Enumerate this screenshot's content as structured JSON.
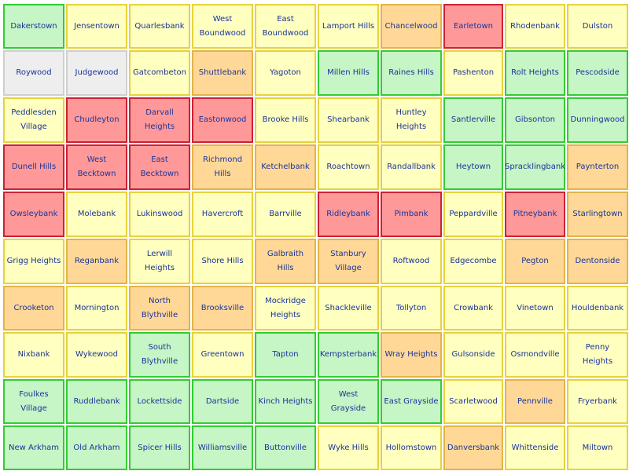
{
  "palette": {
    "green": {
      "bg": "#c6f5c6",
      "border": "#33cc33"
    },
    "yellow": {
      "bg": "#ffffc0",
      "border": "#e6d23c"
    },
    "orange": {
      "bg": "#ffd898",
      "border": "#e2b34a"
    },
    "red": {
      "bg": "#ff9999",
      "border": "#cc2233"
    },
    "gray": {
      "bg": "#eeeeee",
      "border": "#cfcfcf"
    }
  },
  "rows": [
    [
      {
        "name": "Dakerstown",
        "status": "green"
      },
      {
        "name": "Jensentown",
        "status": "yellow"
      },
      {
        "name": "Quarlesbank",
        "status": "yellow"
      },
      {
        "name": "West Boundwood",
        "status": "yellow"
      },
      {
        "name": "East Boundwood",
        "status": "yellow"
      },
      {
        "name": "Lamport Hills",
        "status": "yellow"
      },
      {
        "name": "Chancelwood",
        "status": "orange"
      },
      {
        "name": "Earletown",
        "status": "red"
      },
      {
        "name": "Rhodenbank",
        "status": "yellow"
      },
      {
        "name": "Dulston",
        "status": "yellow"
      }
    ],
    [
      {
        "name": "Roywood",
        "status": "gray"
      },
      {
        "name": "Judgewood",
        "status": "gray"
      },
      {
        "name": "Gatcombeton",
        "status": "yellow"
      },
      {
        "name": "Shuttlebank",
        "status": "orange"
      },
      {
        "name": "Yagoton",
        "status": "yellow"
      },
      {
        "name": "Millen Hills",
        "status": "green"
      },
      {
        "name": "Raines Hills",
        "status": "green"
      },
      {
        "name": "Pashenton",
        "status": "yellow"
      },
      {
        "name": "Rolt Heights",
        "status": "green"
      },
      {
        "name": "Pescodside",
        "status": "green"
      }
    ],
    [
      {
        "name": "Peddlesden Village",
        "status": "yellow"
      },
      {
        "name": "Chudleyton",
        "status": "red"
      },
      {
        "name": "Darvall Heights",
        "status": "red"
      },
      {
        "name": "Eastonwood",
        "status": "red"
      },
      {
        "name": "Brooke Hills",
        "status": "yellow"
      },
      {
        "name": "Shearbank",
        "status": "yellow"
      },
      {
        "name": "Huntley Heights",
        "status": "yellow"
      },
      {
        "name": "Santlerville",
        "status": "green"
      },
      {
        "name": "Gibsonton",
        "status": "green"
      },
      {
        "name": "Dunningwood",
        "status": "green"
      }
    ],
    [
      {
        "name": "Dunell Hills",
        "status": "red"
      },
      {
        "name": "West Becktown",
        "status": "red"
      },
      {
        "name": "East Becktown",
        "status": "red"
      },
      {
        "name": "Richmond Hills",
        "status": "orange"
      },
      {
        "name": "Ketchelbank",
        "status": "orange"
      },
      {
        "name": "Roachtown",
        "status": "yellow"
      },
      {
        "name": "Randallbank",
        "status": "yellow"
      },
      {
        "name": "Heytown",
        "status": "green"
      },
      {
        "name": "Spracklingbank",
        "status": "green"
      },
      {
        "name": "Paynterton",
        "status": "orange"
      }
    ],
    [
      {
        "name": "Owsleybank",
        "status": "red"
      },
      {
        "name": "Molebank",
        "status": "yellow"
      },
      {
        "name": "Lukinswood",
        "status": "yellow"
      },
      {
        "name": "Havercroft",
        "status": "yellow"
      },
      {
        "name": "Barrville",
        "status": "yellow"
      },
      {
        "name": "Ridleybank",
        "status": "red"
      },
      {
        "name": "Pimbank",
        "status": "red"
      },
      {
        "name": "Peppardville",
        "status": "yellow"
      },
      {
        "name": "Pitneybank",
        "status": "red"
      },
      {
        "name": "Starlingtown",
        "status": "orange"
      }
    ],
    [
      {
        "name": "Grigg Heights",
        "status": "yellow"
      },
      {
        "name": "Reganbank",
        "status": "orange"
      },
      {
        "name": "Lerwill Heights",
        "status": "yellow"
      },
      {
        "name": "Shore Hills",
        "status": "yellow"
      },
      {
        "name": "Galbraith Hills",
        "status": "orange"
      },
      {
        "name": "Stanbury Village",
        "status": "orange"
      },
      {
        "name": "Roftwood",
        "status": "yellow"
      },
      {
        "name": "Edgecombe",
        "status": "yellow"
      },
      {
        "name": "Pegton",
        "status": "orange"
      },
      {
        "name": "Dentonside",
        "status": "orange"
      }
    ],
    [
      {
        "name": "Crooketon",
        "status": "orange"
      },
      {
        "name": "Mornington",
        "status": "yellow"
      },
      {
        "name": "North Blythville",
        "status": "orange"
      },
      {
        "name": "Brooksville",
        "status": "orange"
      },
      {
        "name": "Mockridge Heights",
        "status": "yellow"
      },
      {
        "name": "Shackleville",
        "status": "yellow"
      },
      {
        "name": "Tollyton",
        "status": "yellow"
      },
      {
        "name": "Crowbank",
        "status": "yellow"
      },
      {
        "name": "Vinetown",
        "status": "yellow"
      },
      {
        "name": "Houldenbank",
        "status": "yellow"
      }
    ],
    [
      {
        "name": "Nixbank",
        "status": "yellow"
      },
      {
        "name": "Wykewood",
        "status": "yellow"
      },
      {
        "name": "South Blythville",
        "status": "green"
      },
      {
        "name": "Greentown",
        "status": "yellow"
      },
      {
        "name": "Tapton",
        "status": "green"
      },
      {
        "name": "Kempsterbank",
        "status": "green"
      },
      {
        "name": "Wray Heights",
        "status": "orange"
      },
      {
        "name": "Gulsonside",
        "status": "yellow"
      },
      {
        "name": "Osmondville",
        "status": "yellow"
      },
      {
        "name": "Penny Heights",
        "status": "yellow"
      }
    ],
    [
      {
        "name": "Foulkes Village",
        "status": "green"
      },
      {
        "name": "Ruddlebank",
        "status": "green"
      },
      {
        "name": "Lockettside",
        "status": "green"
      },
      {
        "name": "Dartside",
        "status": "green"
      },
      {
        "name": "Kinch Heights",
        "status": "green"
      },
      {
        "name": "West Grayside",
        "status": "green"
      },
      {
        "name": "East Grayside",
        "status": "green"
      },
      {
        "name": "Scarletwood",
        "status": "yellow"
      },
      {
        "name": "Pennville",
        "status": "orange"
      },
      {
        "name": "Fryerbank",
        "status": "yellow"
      }
    ],
    [
      {
        "name": "New Arkham",
        "status": "green"
      },
      {
        "name": "Old Arkham",
        "status": "green"
      },
      {
        "name": "Spicer Hills",
        "status": "green"
      },
      {
        "name": "Williamsville",
        "status": "green"
      },
      {
        "name": "Buttonville",
        "status": "green"
      },
      {
        "name": "Wyke Hills",
        "status": "yellow"
      },
      {
        "name": "Hollomstown",
        "status": "yellow"
      },
      {
        "name": "Danversbank",
        "status": "orange"
      },
      {
        "name": "Whittenside",
        "status": "yellow"
      },
      {
        "name": "Miltown",
        "status": "yellow"
      }
    ]
  ]
}
